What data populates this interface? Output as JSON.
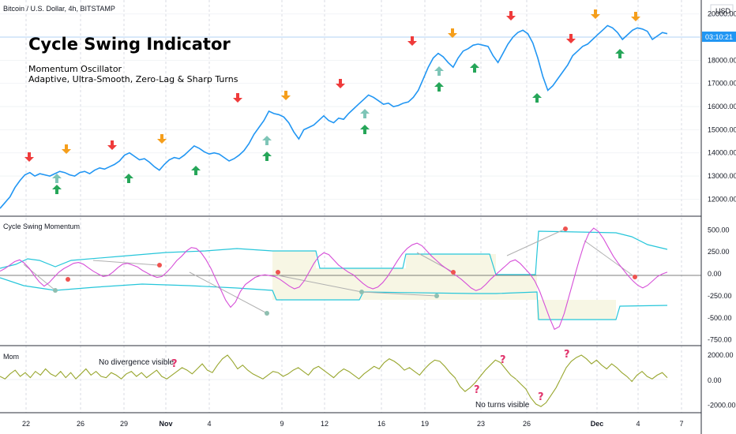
{
  "header": {
    "symbol": "Bitcoin / U.S. Dollar, 4h, BITSTAMP",
    "currency": "USD"
  },
  "overlay": {
    "title": "Cycle Swing Indicator",
    "line1": "Momentum Oscillator",
    "line2": "Adaptive, Ultra-Smooth, Zero-Lag & Sharp Turns"
  },
  "price_tag": "03:10:21",
  "x_ticks": [
    "22",
    "26",
    "29",
    "Nov",
    "4",
    "9",
    "12",
    "16",
    "19",
    "23",
    "26",
    "Dec",
    "4",
    "7"
  ],
  "chart_data": [
    {
      "type": "line",
      "name": "price",
      "ylim": [
        11400,
        20400
      ],
      "y_ticks": [
        "12000.00",
        "13000.00",
        "14000.00",
        "15000.00",
        "16000.00",
        "17000.00",
        "18000.00",
        "19000.00",
        "20000.00"
      ],
      "values": [
        11600,
        11850,
        12100,
        12500,
        12800,
        13050,
        13150,
        13000,
        13100,
        13050,
        13000,
        13100,
        13200,
        13150,
        13050,
        13000,
        13150,
        13200,
        13100,
        13250,
        13350,
        13300,
        13400,
        13500,
        13650,
        13900,
        14000,
        13850,
        13700,
        13750,
        13600,
        13400,
        13250,
        13500,
        13700,
        13800,
        13750,
        13900,
        14100,
        14300,
        14200,
        14050,
        13950,
        14000,
        13950,
        13800,
        13650,
        13750,
        13900,
        14100,
        14400,
        14800,
        15100,
        15400,
        15800,
        15700,
        15650,
        15550,
        15300,
        14900,
        14600,
        15000,
        15100,
        15200,
        15400,
        15600,
        15400,
        15300,
        15500,
        15450,
        15700,
        15900,
        16100,
        16300,
        16500,
        16400,
        16250,
        16100,
        16150,
        16000,
        16050,
        16150,
        16200,
        16400,
        16700,
        17200,
        17700,
        18100,
        18300,
        18150,
        17900,
        17700,
        18100,
        18400,
        18500,
        18650,
        18700,
        18650,
        18600,
        18200,
        17900,
        18300,
        18700,
        19000,
        19200,
        19300,
        19150,
        18750,
        18100,
        17300,
        16700,
        16900,
        17200,
        17500,
        17800,
        18200,
        18400,
        18600,
        18700,
        18900,
        19100,
        19300,
        19500,
        19400,
        19200,
        18900,
        19100,
        19300,
        19400,
        19350,
        19250,
        18900,
        19050,
        19200,
        19150
      ]
    },
    {
      "type": "line",
      "name": "Cycle Swing Momentum",
      "ylim": [
        -780,
        620
      ],
      "y_ticks": [
        "500.00",
        "250.00",
        "0.00",
        "-250.00",
        "-500.00",
        "-750.00"
      ],
      "values": [
        30,
        60,
        100,
        140,
        160,
        120,
        60,
        -20,
        -90,
        -140,
        -100,
        -40,
        20,
        60,
        90,
        120,
        130,
        110,
        70,
        30,
        0,
        -30,
        -20,
        20,
        70,
        110,
        120,
        100,
        80,
        40,
        10,
        -20,
        -40,
        -30,
        20,
        80,
        150,
        200,
        260,
        300,
        290,
        240,
        160,
        60,
        -60,
        -180,
        -300,
        -380,
        -320,
        -200,
        -120,
        -80,
        -40,
        -20,
        -10,
        -20,
        -30,
        -60,
        -100,
        -140,
        -170,
        -150,
        -80,
        20,
        120,
        200,
        240,
        220,
        160,
        100,
        60,
        20,
        -10,
        -60,
        -110,
        -150,
        -170,
        -150,
        -100,
        -30,
        60,
        150,
        230,
        290,
        330,
        350,
        320,
        260,
        200,
        150,
        100,
        60,
        20,
        -20,
        -60,
        -110,
        -160,
        -190,
        -170,
        -120,
        -60,
        -10,
        40,
        90,
        140,
        160,
        120,
        60,
        0,
        -80,
        -200,
        -350,
        -500,
        -630,
        -600,
        -450,
        -250,
        -50,
        150,
        330,
        460,
        520,
        480,
        400,
        300,
        200,
        120,
        50,
        -20,
        -80,
        -130,
        -160,
        -130,
        -80,
        -30,
        0,
        20
      ]
    },
    {
      "type": "line",
      "name": "Mom",
      "ylim": [
        -2400,
        2500
      ],
      "y_ticks": [
        "2000.00",
        "0.00",
        "-2000.00"
      ],
      "values": [
        300,
        100,
        500,
        800,
        300,
        600,
        200,
        700,
        400,
        900,
        500,
        300,
        700,
        200,
        600,
        100,
        500,
        900,
        400,
        700,
        300,
        200,
        600,
        400,
        100,
        500,
        700,
        300,
        600,
        200,
        500,
        800,
        300,
        100,
        400,
        700,
        1000,
        800,
        500,
        900,
        1300,
        800,
        600,
        1200,
        1700,
        2000,
        1500,
        900,
        1200,
        800,
        500,
        300,
        100,
        400,
        700,
        600,
        300,
        500,
        800,
        1000,
        700,
        400,
        900,
        1100,
        800,
        500,
        200,
        600,
        900,
        700,
        400,
        100,
        500,
        800,
        1100,
        900,
        1400,
        1700,
        1500,
        1200,
        800,
        1000,
        700,
        400,
        900,
        1300,
        1600,
        1500,
        1100,
        600,
        200,
        -500,
        -900,
        -600,
        -200,
        300,
        800,
        1200,
        1600,
        1400,
        900,
        400,
        100,
        -300,
        -700,
        -1400,
        -1900,
        -2100,
        -1800,
        -1200,
        -600,
        200,
        1000,
        1500,
        1800,
        2000,
        1700,
        1300,
        1600,
        1200,
        900,
        1300,
        1000,
        600,
        300,
        -100,
        400,
        700,
        300,
        100,
        400,
        600,
        200
      ]
    }
  ],
  "ind1_title": "Cycle Swing Momentum",
  "ind2_title": "Mom",
  "ann": {
    "noDiv": "No divergence visible",
    "noTurns": "No turns visible",
    "q": "?"
  },
  "colors": {
    "price": "#2196f3",
    "osc": "#d64fd8",
    "band": "#26c6da",
    "mom": "#98a62e",
    "red": "#ef3b3b",
    "orange": "#f59e1b",
    "green": "#26a659",
    "teal": "#7ec5b7"
  }
}
